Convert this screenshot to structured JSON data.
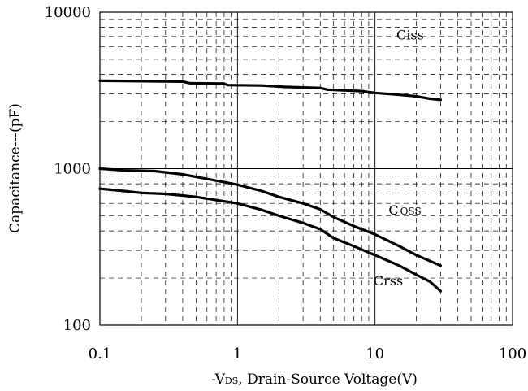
{
  "chart_data": {
    "type": "line",
    "title": "",
    "xlabel": "-VDS, Drain-Source Voltage(V)",
    "xlabel_parts": {
      "prefix": "-V",
      "sub": "DS",
      "suffix": ", Drain-Source Voltage(V)"
    },
    "ylabel": "Capacitance---(pF)",
    "x_scale": "log",
    "y_scale": "log",
    "xlim": [
      0.1,
      100
    ],
    "ylim": [
      100,
      10000
    ],
    "x_ticks": [
      {
        "value": 0.1,
        "label": "0.1"
      },
      {
        "value": 1,
        "label": "1"
      },
      {
        "value": 10,
        "label": "10"
      },
      {
        "value": 100,
        "label": "100"
      }
    ],
    "y_ticks": [
      {
        "value": 100,
        "label": "100"
      },
      {
        "value": 1000,
        "label": "1000"
      },
      {
        "value": 10000,
        "label": "10000"
      }
    ],
    "grid": {
      "major": "solid",
      "minor": "dashed"
    },
    "series": [
      {
        "name": "Ciss",
        "label_text": "Ciss",
        "label_at": [
          18,
          6700
        ],
        "points": [
          [
            0.1,
            3650
          ],
          [
            0.4,
            3600
          ],
          [
            0.45,
            3520
          ],
          [
            0.8,
            3500
          ],
          [
            0.85,
            3420
          ],
          [
            1.5,
            3400
          ],
          [
            2.2,
            3330
          ],
          [
            4,
            3280
          ],
          [
            4.5,
            3200
          ],
          [
            8,
            3130
          ],
          [
            10,
            3050
          ],
          [
            14,
            2980
          ],
          [
            20,
            2900
          ],
          [
            25,
            2800
          ],
          [
            30,
            2750
          ]
        ]
      },
      {
        "name": "Coss",
        "label_text": "C",
        "label_sub": "OSS",
        "label_at": [
          16.5,
          510
        ],
        "points": [
          [
            0.1,
            1000
          ],
          [
            0.15,
            975
          ],
          [
            0.25,
            965
          ],
          [
            0.4,
            920
          ],
          [
            0.6,
            860
          ],
          [
            1,
            790
          ],
          [
            1.5,
            720
          ],
          [
            2,
            660
          ],
          [
            3,
            600
          ],
          [
            4,
            550
          ],
          [
            5,
            490
          ],
          [
            7,
            430
          ],
          [
            10,
            380
          ],
          [
            15,
            320
          ],
          [
            20,
            280
          ],
          [
            30,
            240
          ]
        ]
      },
      {
        "name": "Crss",
        "label_text": "Crss",
        "label_at": [
          12.5,
          180
        ],
        "points": [
          [
            0.1,
            745
          ],
          [
            0.15,
            720
          ],
          [
            0.2,
            700
          ],
          [
            0.3,
            690
          ],
          [
            0.5,
            660
          ],
          [
            0.7,
            630
          ],
          [
            1,
            600
          ],
          [
            1.5,
            545
          ],
          [
            2,
            500
          ],
          [
            3,
            450
          ],
          [
            4,
            410
          ],
          [
            5,
            360
          ],
          [
            7,
            320
          ],
          [
            10,
            280
          ],
          [
            15,
            240
          ],
          [
            20,
            210
          ],
          [
            25,
            190
          ],
          [
            30,
            165
          ]
        ]
      }
    ]
  }
}
